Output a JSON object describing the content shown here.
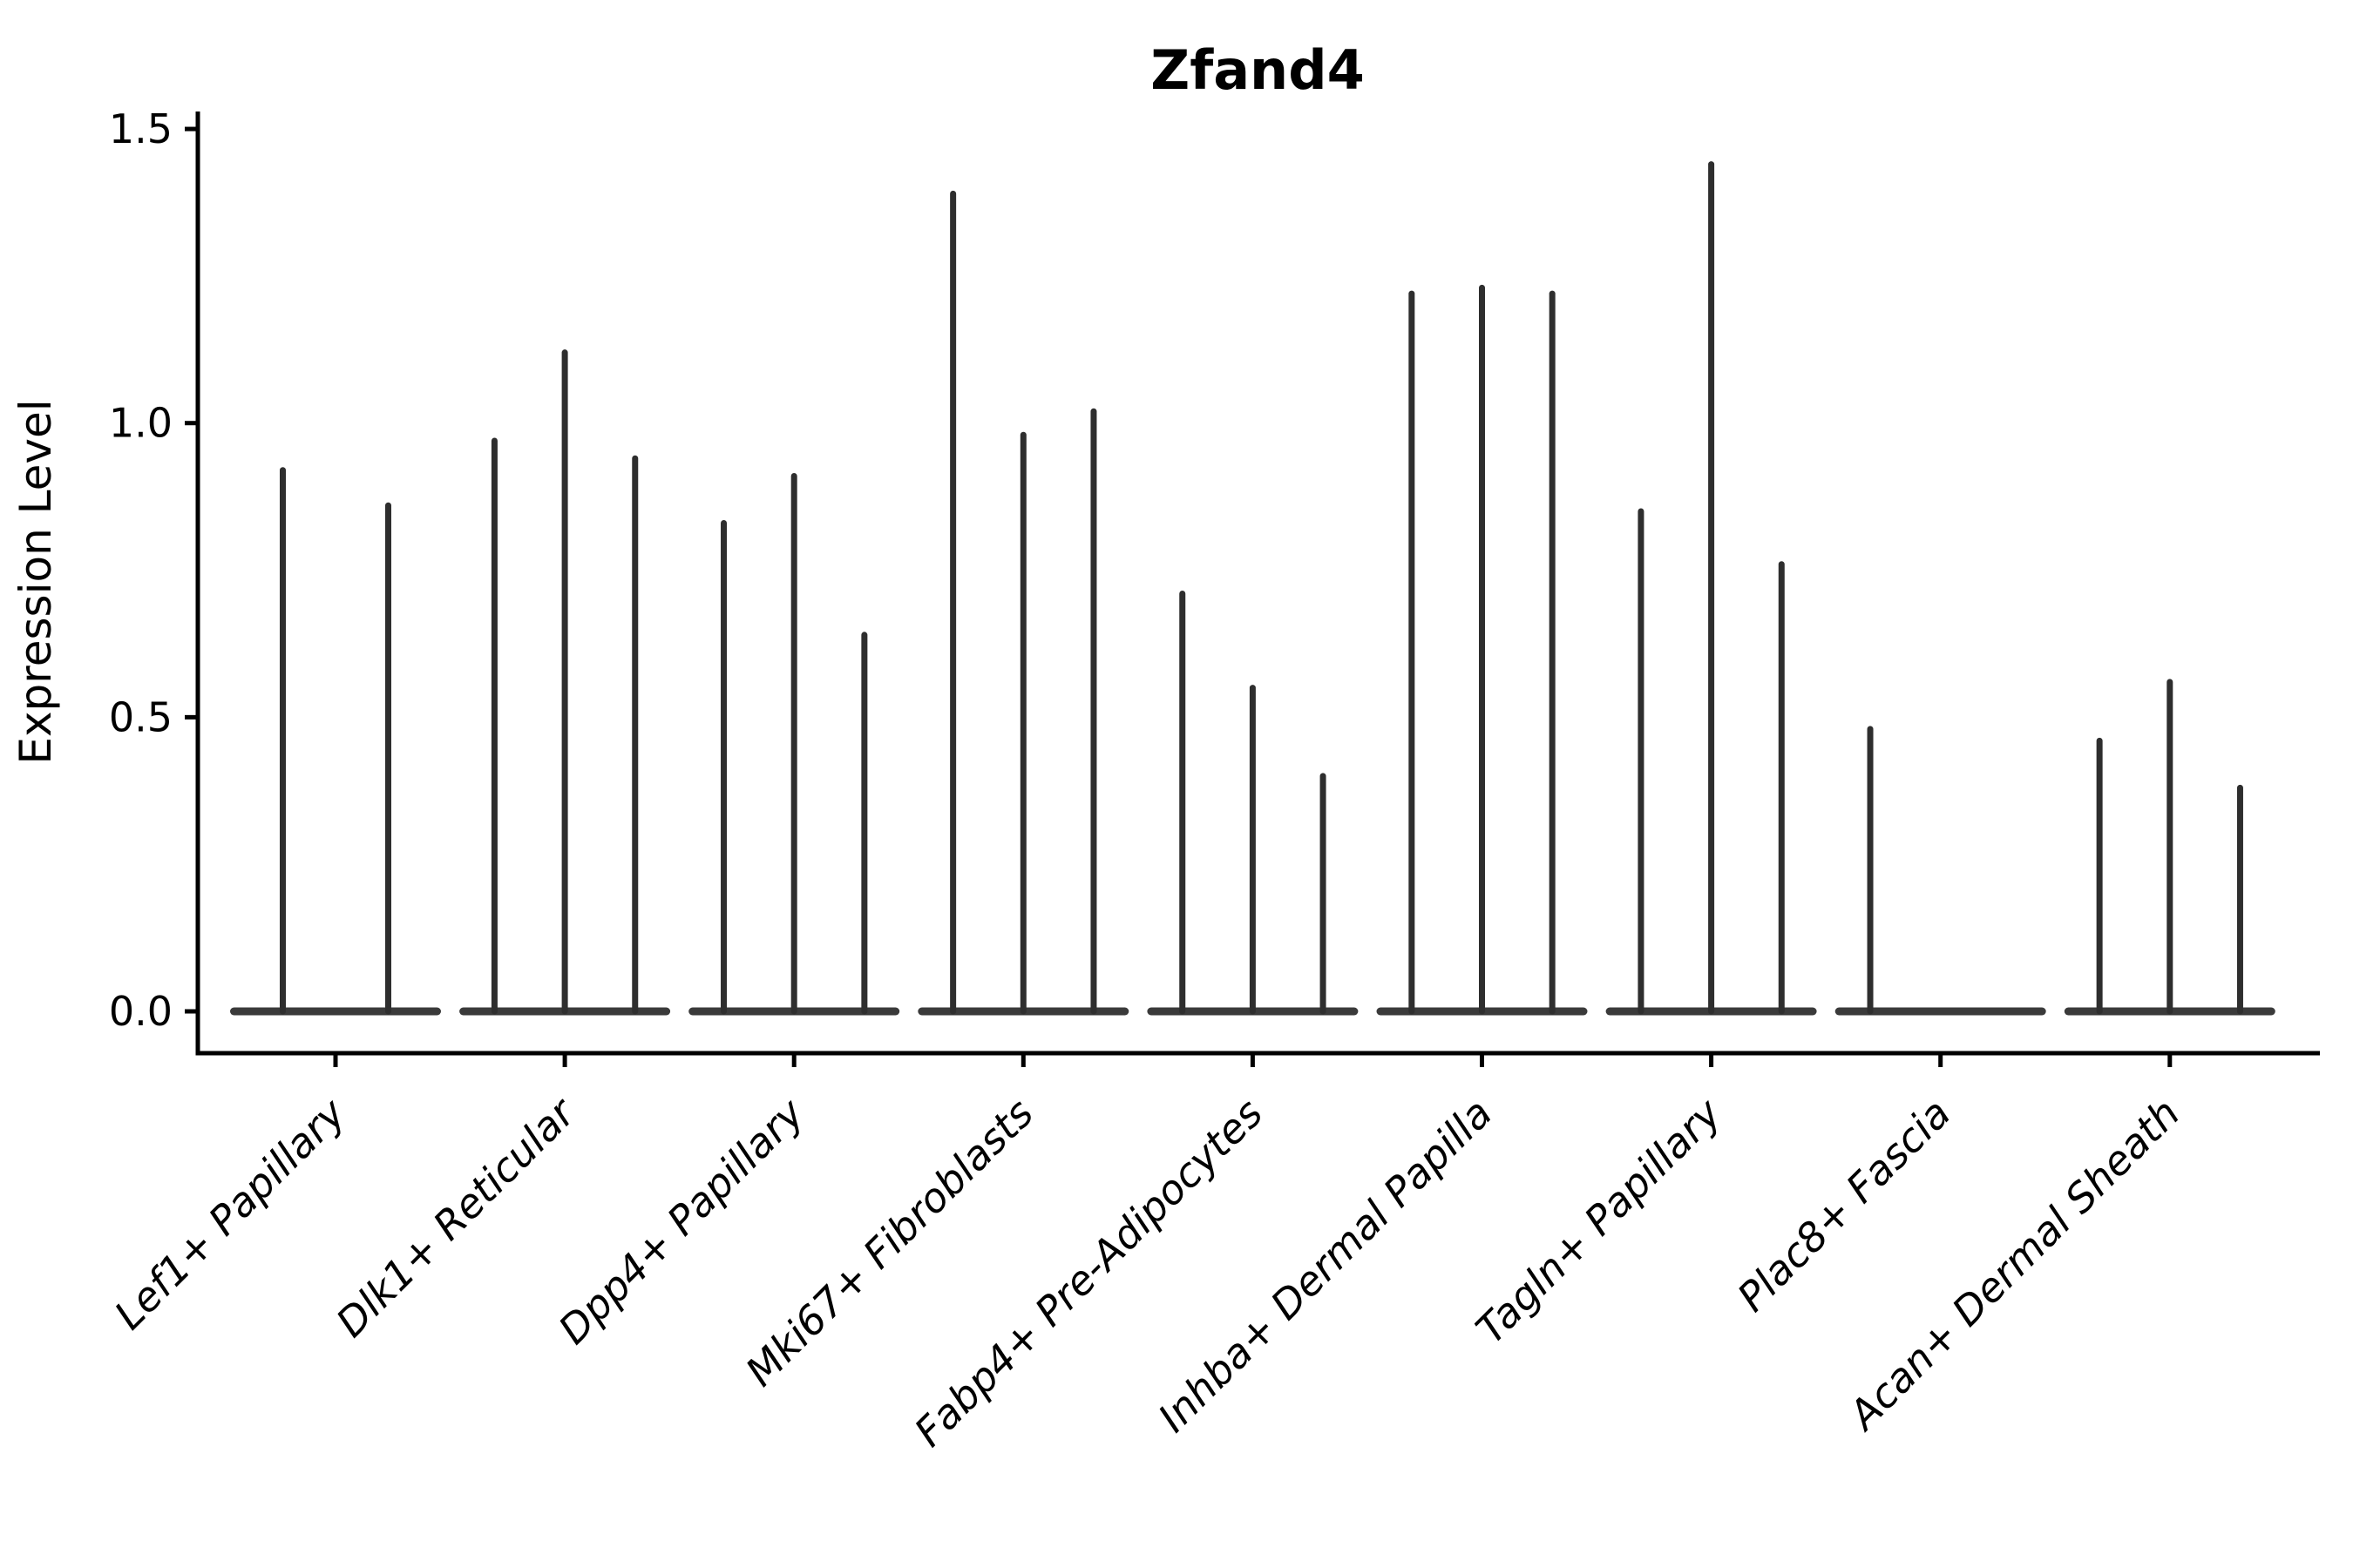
{
  "title": "Zfand4",
  "ylabel": "Expression Level",
  "colors": {
    "spike": "#2e2e2e",
    "baseline": "#3a3a3a",
    "axis": "#000000",
    "text": "#000000",
    "background": "#ffffff"
  },
  "chart_data": {
    "type": "violin",
    "title": "Zfand4",
    "xlabel": "",
    "ylabel": "Expression Level",
    "ylim": [
      0.0,
      1.5
    ],
    "yticks": [
      "0.0",
      "0.5",
      "1.0",
      "1.5"
    ],
    "ytick_values": [
      0.0,
      0.5,
      1.0,
      1.5
    ],
    "grid": false,
    "legend": "none",
    "xtick_rotation": 45,
    "categories": [
      "Lef1+ Papillary",
      "Dlk1+ Reticular",
      "Dpp4+ Papillary",
      "Mki67+ Fibroblasts",
      "Fabp4+ Pre-Adipocytes",
      "Inhba+ Dermal Papilla",
      "Tagln+ Papillary",
      "Plac8+ Fascia",
      "Acan+ Dermal Sheath"
    ],
    "groups": [
      {
        "label": "Lef1+ Papillary",
        "violin_max": [
          0.92,
          0.86
        ]
      },
      {
        "label": "Dlk1+ Reticular",
        "violin_max": [
          0.97,
          1.12,
          0.94
        ]
      },
      {
        "label": "Dpp4+ Papillary",
        "violin_max": [
          0.83,
          0.91,
          0.64
        ]
      },
      {
        "label": "Mki67+ Fibroblasts",
        "violin_max": [
          1.39,
          0.98,
          1.02
        ]
      },
      {
        "label": "Fabp4+ Pre-Adipocytes",
        "violin_max": [
          0.71,
          0.55,
          0.4
        ]
      },
      {
        "label": "Inhba+ Dermal Papilla",
        "violin_max": [
          1.22,
          1.23,
          1.22
        ]
      },
      {
        "label": "Tagln+ Papillary",
        "violin_max": [
          0.85,
          1.44,
          0.76
        ]
      },
      {
        "label": "Plac8+ Fascia",
        "violin_max": [
          0.48,
          0.0,
          0.0
        ]
      },
      {
        "label": "Acan+ Dermal Sheath",
        "violin_max": [
          0.46,
          0.56,
          0.38
        ]
      }
    ]
  }
}
